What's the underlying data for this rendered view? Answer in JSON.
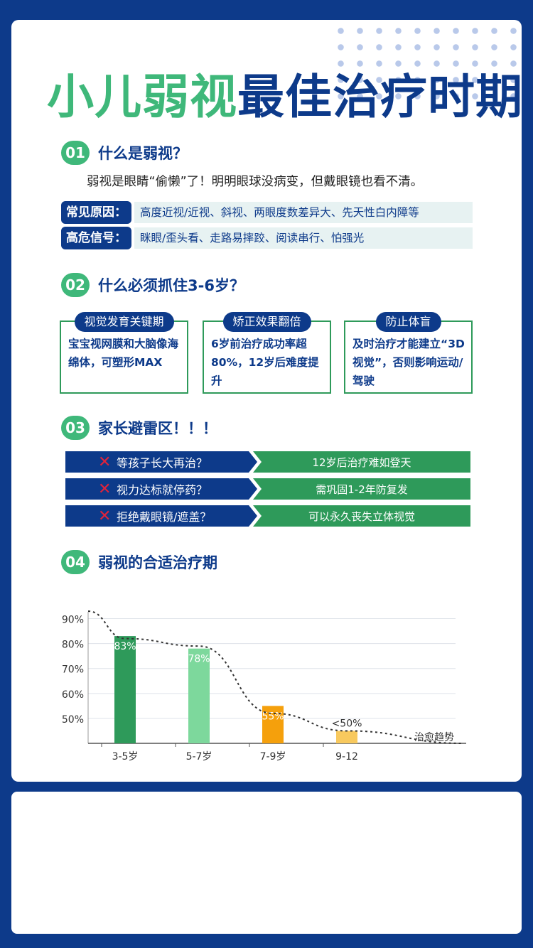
{
  "title": {
    "green": "小儿弱视",
    "blue": "最佳治疗时期"
  },
  "s1": {
    "num": "01",
    "title": "什么是弱视？",
    "desc": "弱视是眼睛“偷懒”了！明明眼球没病变，但戴眼镜也看不清。",
    "rows": [
      {
        "tag": "常见原因：",
        "text": "高度近视/近视、斜视、两眼度数差异大、先天性白内障等"
      },
      {
        "tag": "高危信号：",
        "text": "眯眼/歪头看、走路易摔跤、阅读串行、怕强光"
      }
    ]
  },
  "s2": {
    "num": "02",
    "title": "什么必须抓住3-6岁？",
    "boxes": [
      {
        "head": "视觉发育关键期",
        "body": "宝宝视网膜和大脑像海绵体，可塑形MAX"
      },
      {
        "head": "矫正效果翻倍",
        "body": "6岁前治疗成功率超80%，12岁后难度提升"
      },
      {
        "head": "防止体盲",
        "body": "及时治疗才能建立“3D视觉”，否则影响运动/驾驶"
      }
    ]
  },
  "s3": {
    "num": "03",
    "title": "家长避雷区！！！",
    "items": [
      {
        "icon": "cross-icon",
        "left": "等孩子长大再治？",
        "right": "12岁后治疗难如登天"
      },
      {
        "icon": "cross-icon",
        "left": "视力达标就停药？",
        "right": "需巩固1-2年防复发"
      },
      {
        "icon": "cross-icon",
        "left": "拒绝戴眼镜/遮盖？",
        "right": "可以永久丧失立体视觉"
      }
    ]
  },
  "s4": {
    "num": "04",
    "title": "弱视的合适治疗期"
  },
  "chart_data": {
    "type": "bar",
    "categories": [
      "3-5岁",
      "5-7岁",
      "7-9岁",
      "9-12"
    ],
    "values": [
      83,
      78,
      55,
      45
    ],
    "data_labels": [
      "83%",
      "78%",
      "55%",
      "<50%"
    ],
    "colors": [
      "#2e9a5a",
      "#7dd89c",
      "#f5a00c",
      "#f8c95e"
    ],
    "y_ticks": [
      "50%",
      "60%",
      "70%",
      "80%",
      "90%"
    ],
    "ylim": [
      40,
      95
    ],
    "trend": {
      "label": "治愈趋势",
      "values": [
        93,
        82,
        79,
        52,
        45,
        40
      ]
    },
    "grid": true
  }
}
